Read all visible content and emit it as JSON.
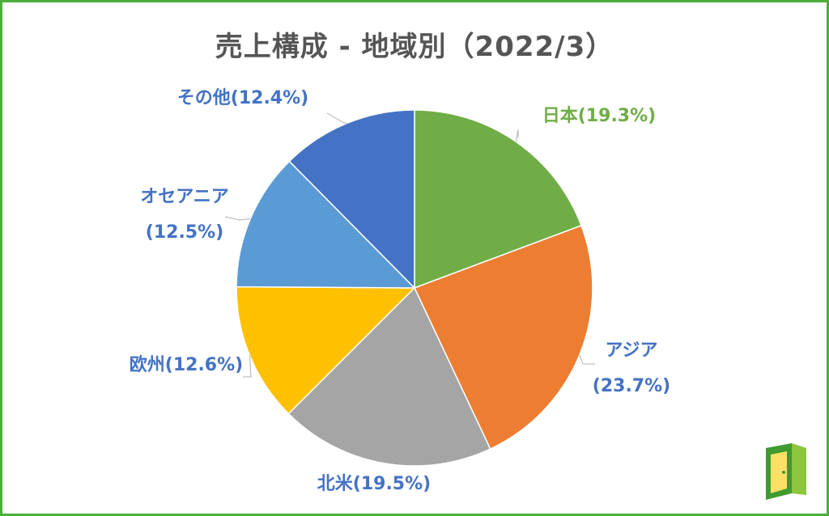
{
  "chart_data": {
    "type": "pie",
    "title": "売上構成 - 地域別（2022/3）",
    "slices": [
      {
        "name": "日本",
        "value": 19.3,
        "label_lines": [
          "日本(19.3%)"
        ],
        "color": "#70ad47",
        "label_color": "#70ad47"
      },
      {
        "name": "アジア",
        "value": 23.7,
        "label_lines": [
          "アジア",
          "(23.7%)"
        ],
        "color": "#ed7d31",
        "label_color": "#4472c4"
      },
      {
        "name": "北米",
        "value": 19.5,
        "label_lines": [
          "北米(19.5%)"
        ],
        "color": "#a5a5a5",
        "label_color": "#4472c4"
      },
      {
        "name": "欧州",
        "value": 12.6,
        "label_lines": [
          "欧州(12.6%)"
        ],
        "color": "#ffc000",
        "label_color": "#4472c4"
      },
      {
        "name": "オセアニア",
        "value": 12.5,
        "label_lines": [
          "オセアニア",
          "(12.5%)"
        ],
        "color": "#5b9bd5",
        "label_color": "#4472c4"
      },
      {
        "name": "その他",
        "value": 12.4,
        "label_lines": [
          "その他(12.4%)"
        ],
        "color": "#4472c4",
        "label_color": "#4472c4"
      }
    ],
    "legend": "none"
  },
  "colors": {
    "border": "#4caf3a",
    "title": "#555555",
    "logo_dark": "#3f9b2f",
    "logo_light": "#8cc63f"
  },
  "logo": {
    "icon": "door-logo-icon"
  }
}
